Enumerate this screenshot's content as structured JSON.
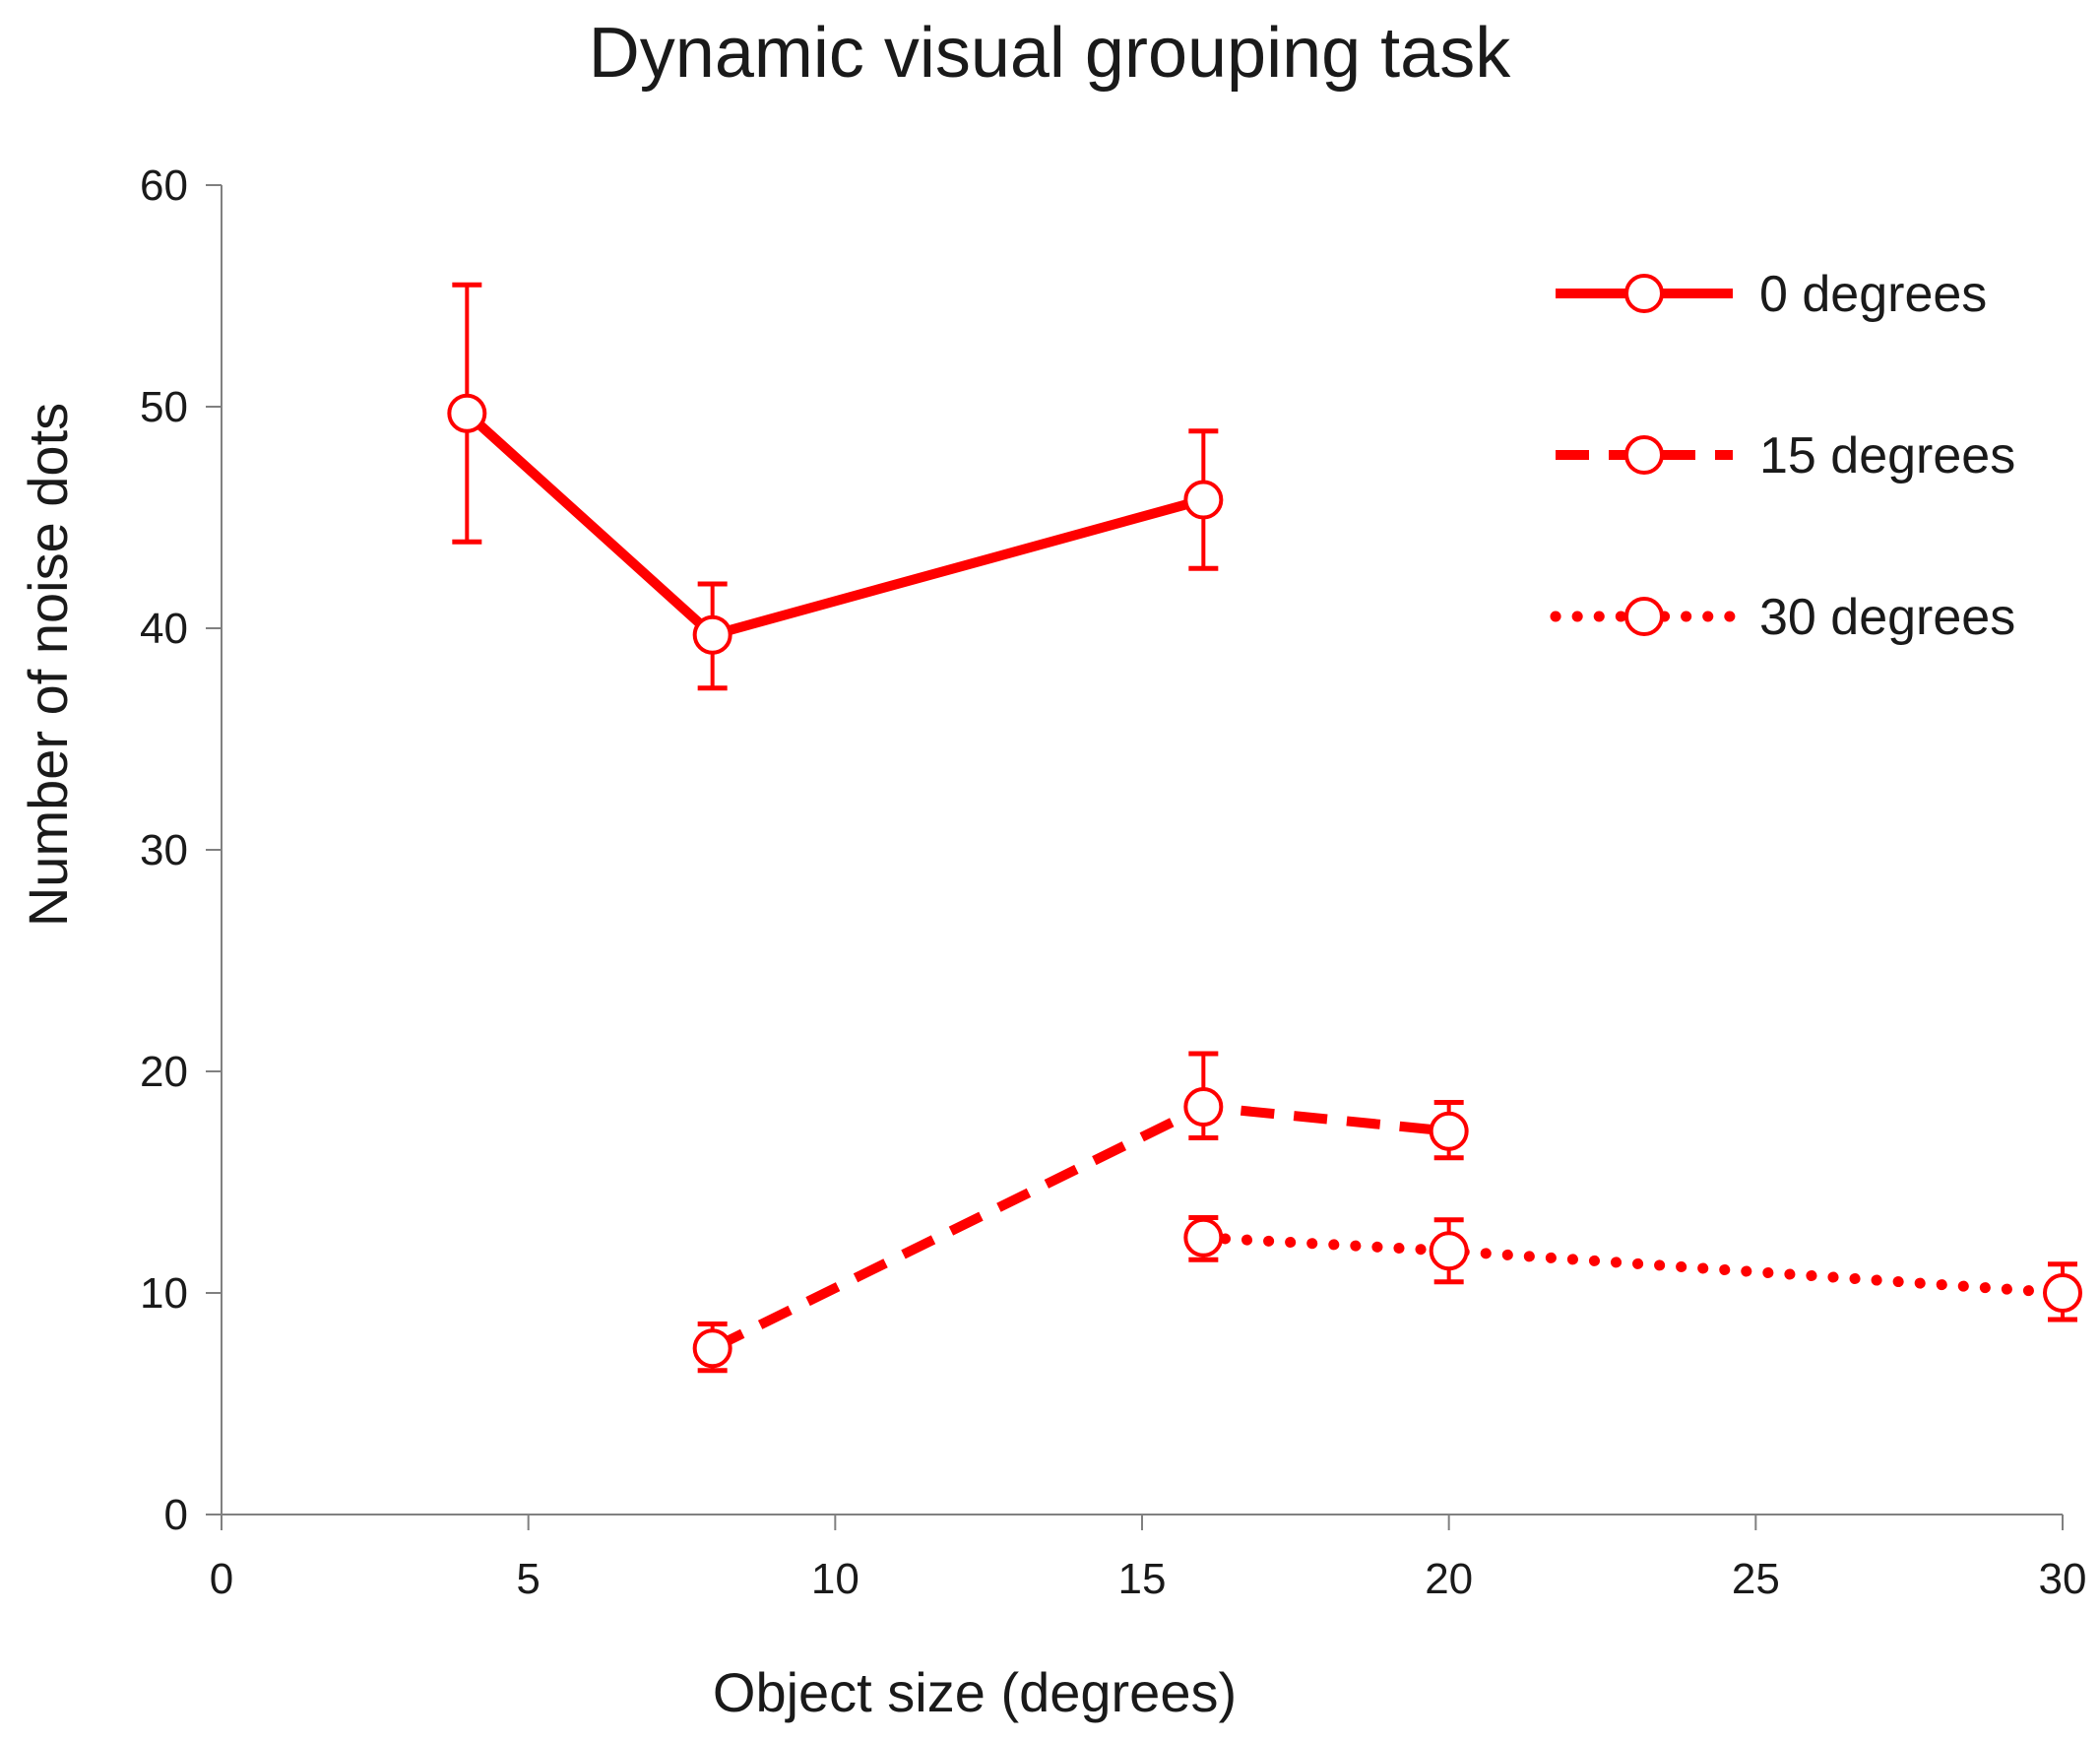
{
  "chart_data": {
    "type": "line",
    "title": "Dynamic visual grouping task",
    "xlabel": "Object size (degrees)",
    "ylabel": "Number of noise dots",
    "xlim": [
      0,
      30
    ],
    "ylim": [
      0,
      60
    ],
    "x_ticks": [
      0,
      5,
      10,
      15,
      20,
      25,
      30
    ],
    "y_ticks": [
      0,
      10,
      20,
      30,
      40,
      50,
      60
    ],
    "grid": false,
    "legend_position": "top-right",
    "series_color": "#ff0000",
    "series": [
      {
        "name": "0 degrees",
        "line_style": "solid",
        "points": [
          {
            "x": 4,
            "y": 49.7,
            "err_low": 43.9,
            "err_high": 55.5
          },
          {
            "x": 8,
            "y": 39.7,
            "err_low": 37.3,
            "err_high": 42.0
          },
          {
            "x": 16,
            "y": 45.8,
            "err_low": 42.7,
            "err_high": 48.9
          }
        ]
      },
      {
        "name": "15 degrees",
        "line_style": "dashed",
        "points": [
          {
            "x": 8,
            "y": 7.5,
            "err_low": 6.5,
            "err_high": 8.6
          },
          {
            "x": 16,
            "y": 18.4,
            "err_low": 17.0,
            "err_high": 20.8
          },
          {
            "x": 20,
            "y": 17.3,
            "err_low": 16.1,
            "err_high": 18.6
          }
        ]
      },
      {
        "name": "30 degrees",
        "line_style": "dotted",
        "points": [
          {
            "x": 16,
            "y": 12.5,
            "err_low": 11.5,
            "err_high": 13.4
          },
          {
            "x": 20,
            "y": 11.9,
            "err_low": 10.5,
            "err_high": 13.3
          },
          {
            "x": 30,
            "y": 10.0,
            "err_low": 8.8,
            "err_high": 11.3
          }
        ]
      }
    ]
  }
}
